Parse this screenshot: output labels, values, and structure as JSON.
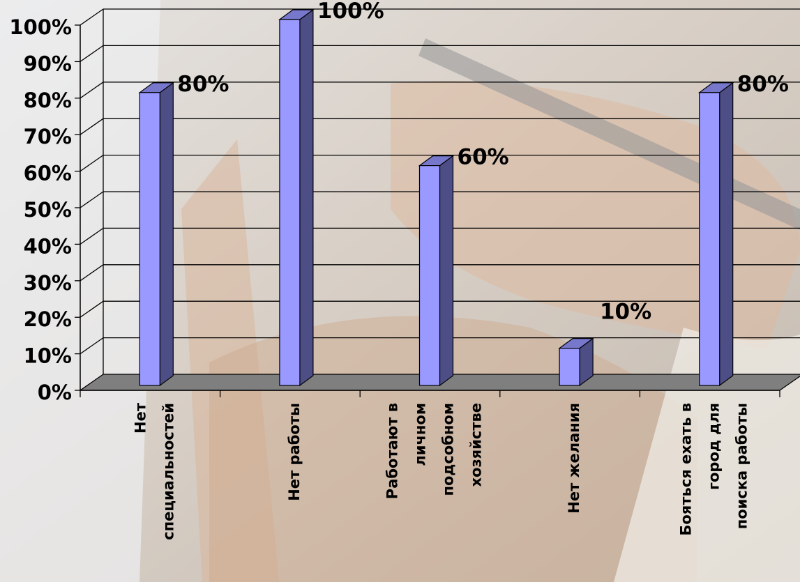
{
  "chart_data": {
    "type": "bar",
    "categories": [
      [
        "Нет",
        "специальностей"
      ],
      [
        "Нет работы"
      ],
      [
        "Работают в",
        "личном",
        "подсобном",
        "хозяйстве"
      ],
      [
        "Нет желания"
      ],
      [
        "Бояться ехать в",
        "город для",
        "поиска работы"
      ]
    ],
    "values": [
      80,
      100,
      60,
      10,
      80
    ],
    "data_labels": [
      "80%",
      "100%",
      "60%",
      "10%",
      "80%"
    ],
    "y_ticks": [
      "0%",
      "10%",
      "20%",
      "30%",
      "40%",
      "50%",
      "60%",
      "70%",
      "80%",
      "90%",
      "100%"
    ],
    "ylim": [
      0,
      100
    ],
    "grid": true,
    "title": "",
    "xlabel": "",
    "ylabel": "",
    "colors": {
      "bar_front": "#9999ff",
      "bar_side": "#4e4e86",
      "bar_top": "#7777cc",
      "floor": "#7f7f7f",
      "gridline": "#000000",
      "text": "#000000"
    }
  }
}
